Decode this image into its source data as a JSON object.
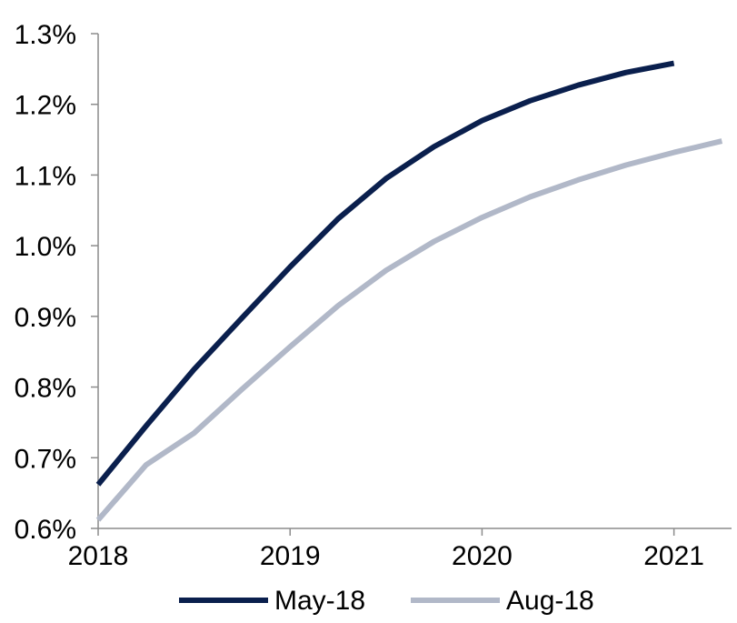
{
  "chart_data": {
    "type": "line",
    "title": "",
    "xlabel": "",
    "ylabel": "",
    "xlim": [
      2018.0,
      2021.3
    ],
    "ylim": [
      0.6,
      1.3
    ],
    "x_ticks": [
      2018,
      2019,
      2020,
      2021
    ],
    "x_tick_labels": [
      "2018",
      "2019",
      "2020",
      "2021"
    ],
    "y_ticks": [
      0.6,
      0.7,
      0.8,
      0.9,
      1.0,
      1.1,
      1.2,
      1.3
    ],
    "y_tick_labels": [
      "0.6%",
      "0.7%",
      "0.8%",
      "0.9%",
      "1.0%",
      "1.1%",
      "1.2%",
      "1.3%"
    ],
    "grid": false,
    "legend_position": "bottom",
    "series": [
      {
        "name": "May-18",
        "color": "#0a1f4d",
        "x": [
          2018.0,
          2018.25,
          2018.5,
          2018.75,
          2019.0,
          2019.25,
          2019.5,
          2019.75,
          2020.0,
          2020.25,
          2020.5,
          2020.75,
          2021.0
        ],
        "values": [
          0.662,
          0.745,
          0.825,
          0.898,
          0.97,
          1.038,
          1.095,
          1.14,
          1.177,
          1.205,
          1.227,
          1.245,
          1.258
        ]
      },
      {
        "name": "Aug-18",
        "color": "#b1b8c8",
        "x": [
          2018.0,
          2018.25,
          2018.5,
          2018.75,
          2019.0,
          2019.25,
          2019.5,
          2019.75,
          2020.0,
          2020.25,
          2020.5,
          2020.75,
          2021.0,
          2021.25
        ],
        "values": [
          0.612,
          0.69,
          0.735,
          0.797,
          0.857,
          0.915,
          0.965,
          1.006,
          1.04,
          1.069,
          1.093,
          1.114,
          1.132,
          1.148
        ]
      }
    ]
  }
}
